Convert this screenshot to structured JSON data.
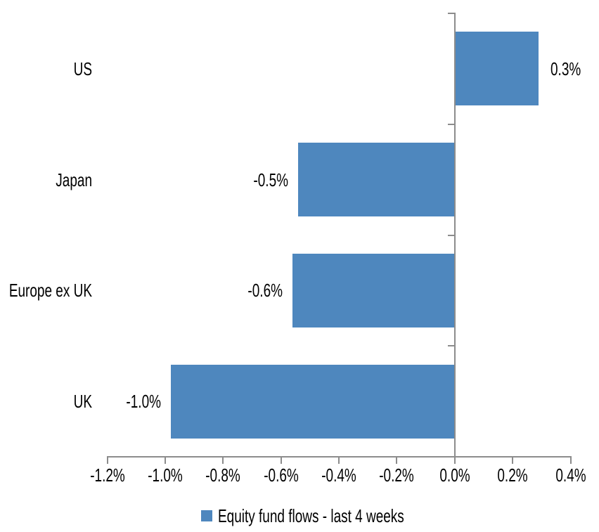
{
  "chart_data": {
    "type": "bar",
    "orientation": "horizontal",
    "title": "",
    "categories": [
      "US",
      "Japan",
      "Europe ex UK",
      "UK"
    ],
    "series": [
      {
        "name": "Equity fund flows - last 4 weeks",
        "values": [
          0.3,
          -0.5,
          -0.6,
          -1.0
        ],
        "values_plotted_pct": [
          0.29,
          -0.54,
          -0.56,
          -0.98
        ],
        "data_labels": [
          "0.3%",
          "-0.5%",
          "-0.6%",
          "-1.0%"
        ]
      }
    ],
    "x_axis": {
      "unit": "%",
      "min": -1.2,
      "max": 0.4,
      "tick_values": [
        -1.2,
        -1.0,
        -0.8,
        -0.6,
        -0.4,
        -0.2,
        0.0,
        0.2,
        0.4
      ],
      "tick_labels": [
        "-1.2%",
        "-1.0%",
        "-0.8%",
        "-0.6%",
        "-0.4%",
        "-0.2%",
        "0.0%",
        "0.2%",
        "0.4%"
      ]
    },
    "grid": false,
    "legend": {
      "position": "bottom-center",
      "label": "Equity fund flows - last 4 weeks",
      "marker": "square"
    },
    "colors": {
      "bar": "#4E87BE",
      "axis": "#8C8C8C",
      "text": "#000000",
      "background": "#FFFFFF"
    }
  }
}
